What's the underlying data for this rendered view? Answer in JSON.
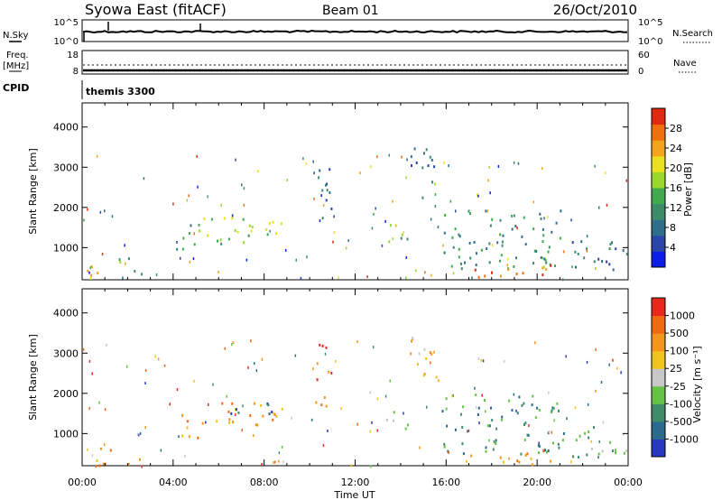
{
  "header": {
    "station": "Syowa East (fitACF)",
    "beam": "Beam 01",
    "date": "26/Oct/2010"
  },
  "top_panels": {
    "nsky_label": "N.Sky",
    "nsky_ticks": [
      "10^5",
      "10^0"
    ],
    "nsearch_label": "N.Search",
    "nsearch_ticks": [
      "10^5",
      "10^0"
    ],
    "freq_label": "Freq.",
    "freq_unit": "[MHz]",
    "freq_ticks": [
      "18",
      "8"
    ],
    "nave_label": "Nave",
    "nave_ticks": [
      "60",
      "0"
    ],
    "cpid_label": "CPID",
    "cpid_text": "themis 3300"
  },
  "chart_data": [
    {
      "type": "heatmap",
      "name": "power",
      "ylabel": "Slant Range [km]",
      "yticks": [
        1000,
        2000,
        3000,
        4000
      ],
      "ylim": [
        200,
        4600
      ],
      "xlim": [
        0,
        24
      ],
      "colorbar_label": "Power [dB]",
      "colorbar_ticks": [
        "28",
        "24",
        "20",
        "16",
        "12",
        "8",
        "4"
      ],
      "colors": [
        "#0a1ee6",
        "#2a46a8",
        "#2f6e8a",
        "#3c8c6a",
        "#3faa4e",
        "#9ad82c",
        "#e8e020",
        "#f4a41c",
        "#f07010",
        "#e02a10"
      ],
      "regions": [
        {
          "t0": 0.2,
          "t1": 1.6,
          "r0": 220,
          "r1": 600,
          "level": 7
        },
        {
          "t0": 1.5,
          "t1": 2.6,
          "r0": 250,
          "r1": 800,
          "level": 4
        },
        {
          "t0": 4.1,
          "t1": 5.2,
          "r0": 900,
          "r1": 1600,
          "level": 3
        },
        {
          "t0": 5.0,
          "t1": 8.9,
          "r0": 1200,
          "r1": 1800,
          "level": 5
        },
        {
          "t0": 5.8,
          "t1": 7.6,
          "r0": 1100,
          "r1": 1400,
          "level": 4
        },
        {
          "t0": 10.2,
          "t1": 11.0,
          "r0": 1700,
          "r1": 3300,
          "level": 2
        },
        {
          "t0": 13.4,
          "t1": 14.6,
          "r0": 1100,
          "r1": 1600,
          "level": 4
        },
        {
          "t0": 14.4,
          "t1": 15.6,
          "r0": 2200,
          "r1": 3500,
          "level": 2
        },
        {
          "t0": 15.8,
          "t1": 21.2,
          "r0": 500,
          "r1": 2000,
          "level": 3
        },
        {
          "t0": 16.8,
          "t1": 20.6,
          "r0": 220,
          "r1": 600,
          "level": 8
        },
        {
          "t0": 21.5,
          "t1": 24.0,
          "r0": 300,
          "r1": 1200,
          "level": 2
        }
      ]
    },
    {
      "type": "heatmap",
      "name": "velocity",
      "ylabel": "Slant Range [km]",
      "xlabel": "Time UT",
      "xticks": [
        "00:00",
        "04:00",
        "08:00",
        "12:00",
        "16:00",
        "20:00",
        "00:00"
      ],
      "yticks": [
        1000,
        2000,
        3000,
        4000
      ],
      "ylim": [
        200,
        4600
      ],
      "xlim": [
        0,
        24
      ],
      "colorbar_label": "Velocity [m s⁻¹]",
      "colorbar_ticks": [
        "1000",
        "500",
        "100",
        "25",
        "-25",
        "-100",
        "-500",
        "-1000"
      ],
      "colors": [
        "#2838c0",
        "#2a6a8c",
        "#3e8c6a",
        "#64c244",
        "#c8c8c8",
        "#f0c21e",
        "#f4961c",
        "#f06a12",
        "#e8281a"
      ],
      "regions": [
        {
          "t0": 0.2,
          "t1": 1.8,
          "r0": 220,
          "r1": 700,
          "level": 6
        },
        {
          "t0": 1.6,
          "t1": 2.6,
          "r0": 220,
          "r1": 500,
          "level": 5
        },
        {
          "t0": 4.1,
          "t1": 5.2,
          "r0": 900,
          "r1": 1600,
          "level": 6
        },
        {
          "t0": 5.0,
          "t1": 8.9,
          "r0": 1200,
          "r1": 1800,
          "level": 6
        },
        {
          "t0": 5.6,
          "t1": 8.4,
          "r0": 1500,
          "r1": 1800,
          "level": 1
        },
        {
          "t0": 10.2,
          "t1": 11.0,
          "r0": 1700,
          "r1": 3300,
          "level": 7
        },
        {
          "t0": 13.3,
          "t1": 14.6,
          "r0": 1100,
          "r1": 1600,
          "level": 4
        },
        {
          "t0": 14.4,
          "t1": 15.6,
          "r0": 2200,
          "r1": 3500,
          "level": 5
        },
        {
          "t0": 15.8,
          "t1": 21.2,
          "r0": 500,
          "r1": 2000,
          "level": 2
        },
        {
          "t0": 16.8,
          "t1": 20.6,
          "r0": 220,
          "r1": 600,
          "level": 6
        },
        {
          "t0": 21.5,
          "t1": 24.0,
          "r0": 300,
          "r1": 1200,
          "level": 3
        }
      ]
    }
  ]
}
